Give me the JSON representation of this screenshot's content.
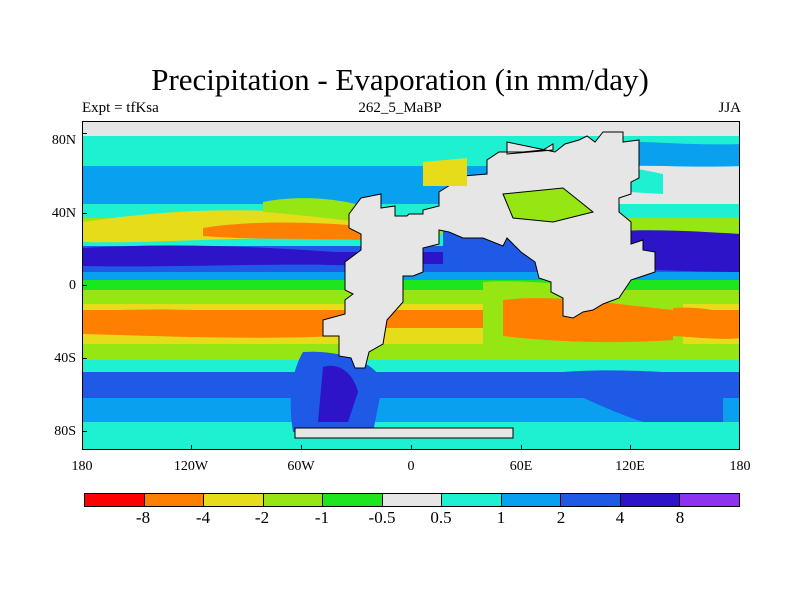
{
  "title": "Precipitation - Evaporation (in mm/day)",
  "subtitle_left": "Expt = tfKsa",
  "subtitle_center": "262_5_MaBP",
  "subtitle_right": "JJA",
  "y_labels": [
    "80N",
    "40N",
    "0",
    "40S",
    "80S"
  ],
  "x_labels": [
    "180",
    "120W",
    "60W",
    "0",
    "60E",
    "120E",
    "180"
  ],
  "colorbar": {
    "colors": [
      "#ff0000",
      "#ff8000",
      "#e6dc19",
      "#96e614",
      "#1ee61e",
      "#e6e6e6",
      "#1ef0d2",
      "#0aa0f0",
      "#1e5ae6",
      "#2d14c8",
      "#8c32f0"
    ],
    "labels": [
      "-8",
      "-4",
      "-2",
      "-1",
      "-0.5",
      "0.5",
      "1",
      "2",
      "4",
      "8"
    ]
  }
}
